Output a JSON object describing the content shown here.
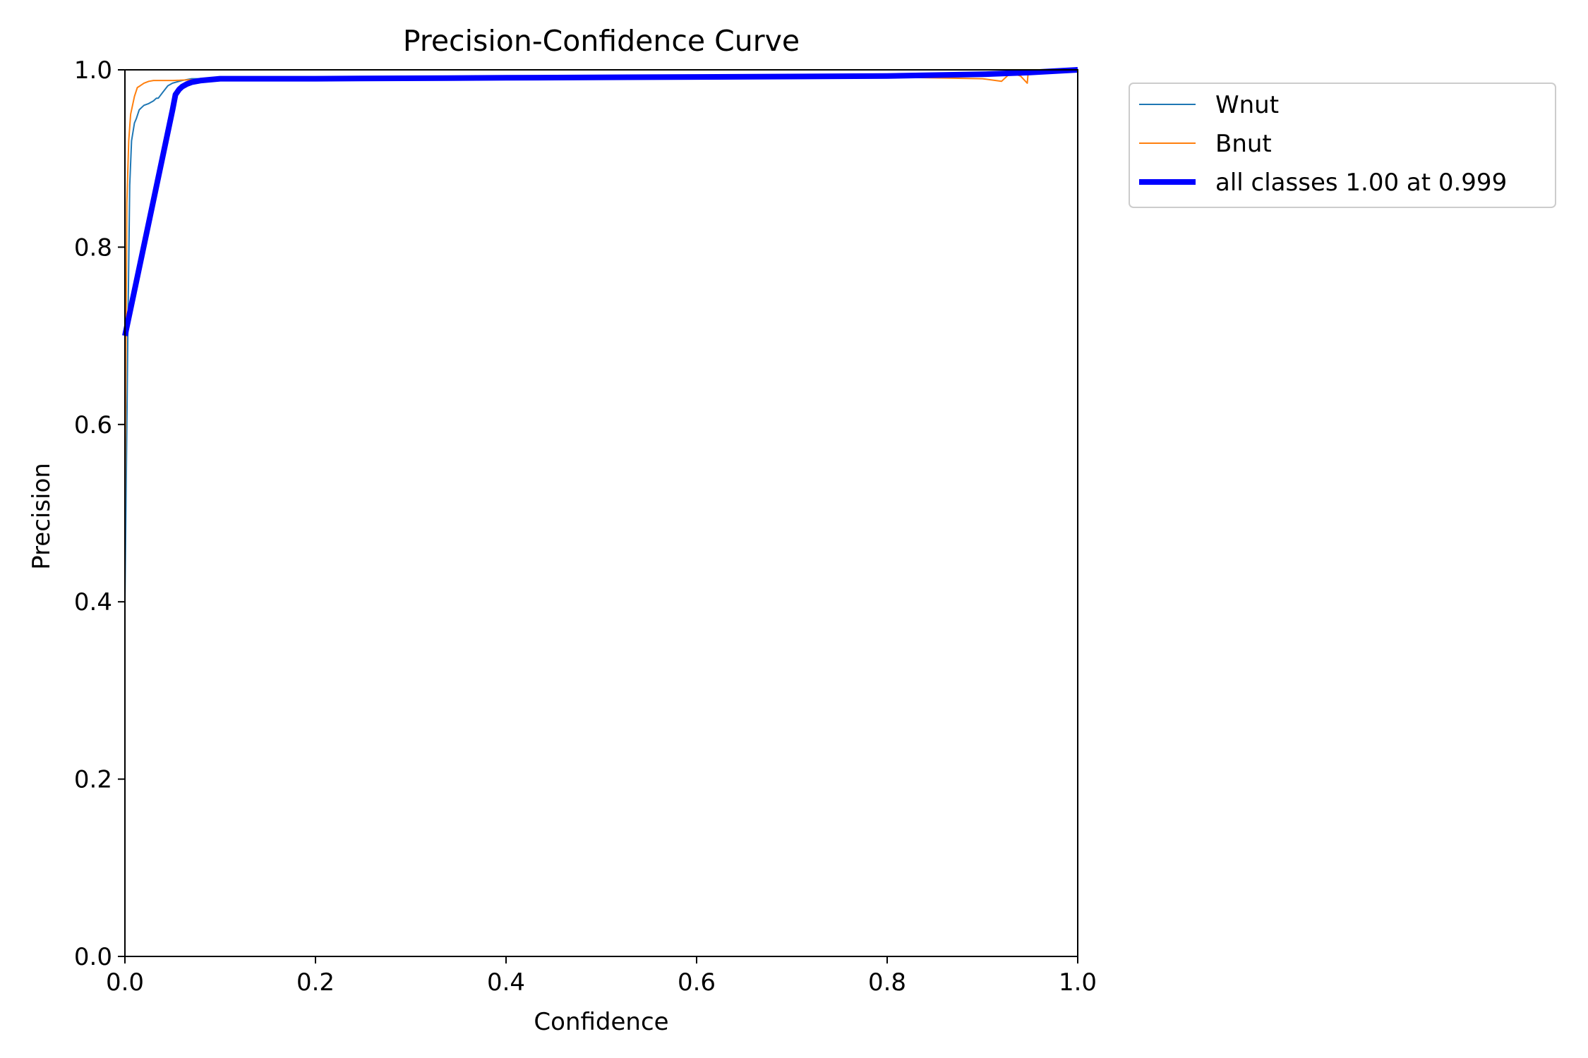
{
  "chart_data": {
    "type": "line",
    "title": "Precision-Confidence Curve",
    "xlabel": "Confidence",
    "ylabel": "Precision",
    "xlim": [
      0,
      1
    ],
    "ylim": [
      0,
      1
    ],
    "xticks": [
      "0.0",
      "0.2",
      "0.4",
      "0.6",
      "0.8",
      "1.0"
    ],
    "yticks": [
      "0.0",
      "0.2",
      "0.4",
      "0.6",
      "0.8",
      "1.0"
    ],
    "grid": false,
    "legend_position": "outside-top-right",
    "series": [
      {
        "name": "Wnut",
        "color": "#1f77b4",
        "x": [
          0.0,
          0.003,
          0.005,
          0.007,
          0.01,
          0.012,
          0.015,
          0.018,
          0.02,
          0.025,
          0.03,
          0.033,
          0.035,
          0.04,
          0.045,
          0.05,
          0.06,
          0.07,
          0.08,
          0.1,
          0.2,
          0.4,
          0.6,
          0.8,
          0.9,
          0.95,
          1.0
        ],
        "y": [
          0.4,
          0.7,
          0.87,
          0.92,
          0.94,
          0.945,
          0.955,
          0.958,
          0.96,
          0.962,
          0.965,
          0.968,
          0.968,
          0.975,
          0.982,
          0.985,
          0.988,
          0.99,
          0.99,
          0.99,
          0.99,
          0.991,
          0.992,
          0.993,
          0.995,
          0.997,
          1.0
        ]
      },
      {
        "name": "Bnut",
        "color": "#ff7f0e",
        "x": [
          0.0,
          0.002,
          0.004,
          0.006,
          0.008,
          0.01,
          0.013,
          0.016,
          0.02,
          0.025,
          0.03,
          0.04,
          0.05,
          0.1,
          0.2,
          0.4,
          0.6,
          0.8,
          0.9,
          0.92,
          0.93,
          0.94,
          0.947,
          0.948,
          0.96,
          0.98,
          1.0
        ],
        "y": [
          0.5,
          0.85,
          0.92,
          0.95,
          0.96,
          0.97,
          0.98,
          0.982,
          0.985,
          0.987,
          0.988,
          0.988,
          0.988,
          0.99,
          0.99,
          0.991,
          0.992,
          0.992,
          0.99,
          0.987,
          0.997,
          0.993,
          0.985,
          0.997,
          0.998,
          0.999,
          1.0
        ]
      },
      {
        "name": "all classes 1.00 at 0.999",
        "color": "#0000ff",
        "x": [
          0.0,
          0.05,
          0.053,
          0.057,
          0.06,
          0.065,
          0.07,
          0.08,
          0.1,
          0.2,
          0.4,
          0.6,
          0.8,
          0.9,
          0.95,
          1.0
        ],
        "y": [
          0.7,
          0.955,
          0.972,
          0.978,
          0.981,
          0.984,
          0.986,
          0.988,
          0.99,
          0.99,
          0.991,
          0.992,
          0.993,
          0.995,
          0.997,
          1.0
        ]
      }
    ]
  }
}
